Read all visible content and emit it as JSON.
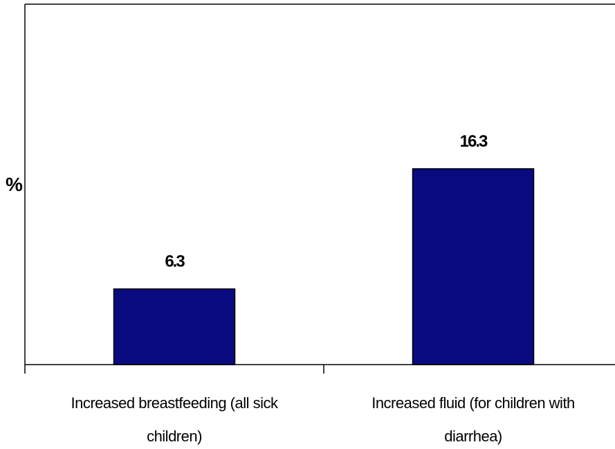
{
  "chart_data": {
    "type": "bar",
    "ylabel": "%",
    "categories": [
      [
        "Increased breastfeeding (all sick",
        "children)"
      ],
      [
        "Increased fluid (for children with",
        "diarrhea)"
      ]
    ],
    "values": [
      6.3,
      16.3
    ],
    "value_labels": [
      "6.3",
      "16.3"
    ],
    "ylim": [
      0,
      30
    ],
    "bar_color": "#0a0a80",
    "grid": false,
    "legend": "none"
  }
}
